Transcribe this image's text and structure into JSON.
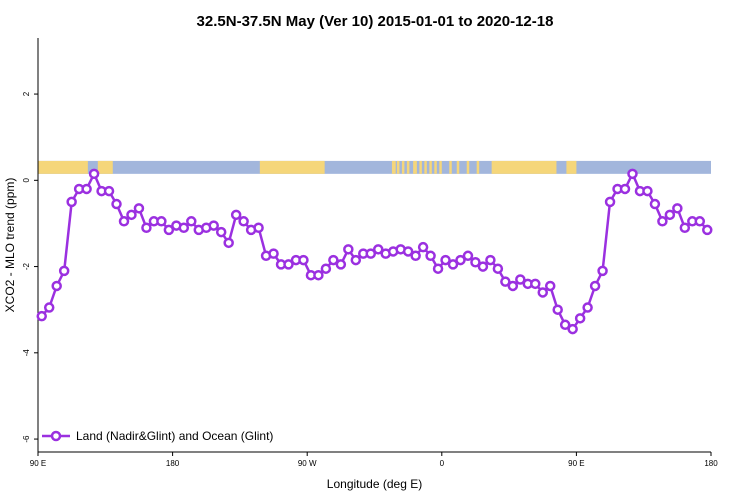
{
  "chart_data": {
    "type": "line",
    "title": "32.5N-37.5N May (Ver 10)   2015-01-01 to 2020-12-18",
    "xlabel": "Longitude (deg E)",
    "ylabel": "XCO2 - MLO trend (ppm)",
    "xlim": [
      -90,
      180
    ],
    "ylim": [
      -6.3,
      3.3
    ],
    "xticks": [
      {
        "value": -90,
        "label": "90 E"
      },
      {
        "value": -36,
        "label": "180"
      },
      {
        "value": 18,
        "label": "90 W"
      },
      {
        "value": 72,
        "label": "0"
      },
      {
        "value": 126,
        "label": "90 E"
      },
      {
        "value": 180,
        "label": "180"
      }
    ],
    "yticks": [
      {
        "value": -6,
        "label": "-6"
      },
      {
        "value": -4,
        "label": "-4"
      },
      {
        "value": -2,
        "label": "-2"
      },
      {
        "value": 0,
        "label": "0"
      },
      {
        "value": 2,
        "label": "2"
      }
    ],
    "grid": false,
    "legend_position": "bottom-left",
    "series": [
      {
        "name": "Land (Nadir&Glint) and Ocean (Glint)",
        "color": "#9b30e0",
        "x": [
          -88.5,
          -85.5,
          -82.5,
          -79.5,
          -76.5,
          -73.5,
          -70.5,
          -67.5,
          -64.5,
          -61.5,
          -58.5,
          -55.5,
          -52.5,
          -49.5,
          -46.5,
          -43.5,
          -40.5,
          -37.5,
          -34.5,
          -31.5,
          -28.5,
          -25.5,
          -22.5,
          -19.5,
          -16.5,
          -13.5,
          -10.5,
          -7.5,
          -4.5,
          -1.5,
          1.5,
          4.5,
          7.5,
          10.5,
          13.5,
          16.5,
          19.5,
          22.5,
          25.5,
          28.5,
          31.5,
          34.5,
          37.5,
          40.5,
          43.5,
          46.5,
          49.5,
          52.5,
          55.5,
          58.5,
          61.5,
          64.5,
          67.5,
          70.5,
          73.5,
          76.5,
          79.5,
          82.5,
          85.5,
          88.5,
          91.5,
          94.5,
          97.5,
          100.5,
          103.5,
          106.5,
          109.5,
          112.5,
          115.5,
          118.5,
          121.5,
          124.5,
          127.5,
          130.5,
          133.5,
          136.5,
          139.5,
          142.5,
          145.5,
          148.5,
          151.5,
          154.5,
          157.5,
          160.5,
          163.5,
          166.5,
          169.5,
          172.5,
          175.5,
          178.5
        ],
        "values": [
          -3.15,
          -2.95,
          -2.45,
          -2.1,
          -0.5,
          -0.2,
          -0.2,
          0.15,
          -0.25,
          -0.25,
          -0.55,
          -0.95,
          -0.8,
          -0.65,
          -1.1,
          -0.95,
          -0.95,
          -1.15,
          -1.05,
          -1.1,
          -0.95,
          -1.15,
          -1.1,
          -1.05,
          -1.2,
          -1.45,
          -0.8,
          -0.95,
          -1.15,
          -1.1,
          -1.75,
          -1.7,
          -1.95,
          -1.95,
          -1.85,
          -1.85,
          -2.2,
          -2.2,
          -2.05,
          -1.85,
          -1.95,
          -1.6,
          -1.85,
          -1.7,
          -1.7,
          -1.6,
          -1.7,
          -1.65,
          -1.6,
          -1.65,
          -1.75,
          -1.55,
          -1.75,
          -2.05,
          -1.85,
          -1.95,
          -1.85,
          -1.75,
          -1.9,
          -2.0,
          -1.85,
          -2.05,
          -2.35,
          -2.45,
          -2.3,
          -2.4,
          -2.4,
          -2.6,
          -2.45,
          -3.0,
          -3.35,
          -3.45,
          -3.2,
          -2.95,
          -2.45,
          -2.1,
          -0.5,
          -0.2,
          -0.2,
          0.15,
          -0.25,
          -0.25,
          -0.55,
          -0.95,
          -0.8,
          -0.65,
          -1.1,
          -0.95,
          -0.95,
          -1.15
        ]
      }
    ],
    "land_ocean_strip": {
      "land_color": "#f5d67a",
      "ocean_color": "#a2b6dc",
      "land_ranges": [
        [
          -90,
          -70
        ],
        [
          -66,
          -60
        ],
        [
          -1,
          25
        ],
        [
          52,
          53.5
        ],
        [
          54,
          55
        ],
        [
          56,
          57
        ],
        [
          58,
          59
        ],
        [
          60.5,
          62
        ],
        [
          63,
          64
        ],
        [
          65,
          66
        ],
        [
          67,
          68
        ],
        [
          69,
          70
        ],
        [
          71,
          72
        ],
        [
          75,
          76
        ],
        [
          78,
          79
        ],
        [
          82,
          83
        ],
        [
          86,
          87
        ],
        [
          92,
          118
        ],
        [
          122,
          126
        ]
      ]
    }
  }
}
